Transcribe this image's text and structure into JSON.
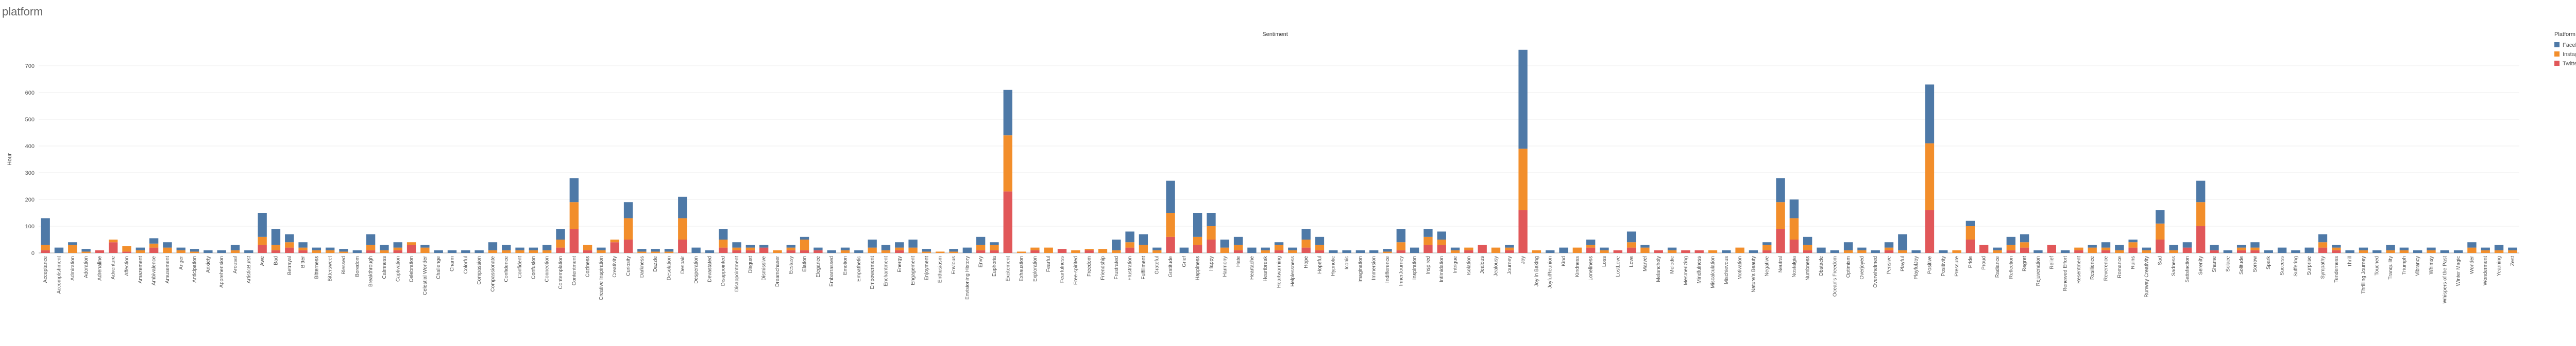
{
  "chart_data": {
    "type": "stacked_bar",
    "page_title": "platform",
    "title": "Sentiment",
    "y_label": "Hour",
    "legend_title": "Platform",
    "legend": "top-right",
    "grid": true,
    "ylim": [
      0,
      780
    ],
    "yticks": [
      0,
      100,
      200,
      300,
      400,
      500,
      600,
      700
    ],
    "categories": [
      "Acceptance",
      "Accomplishment",
      "Admiration",
      "Adoration",
      "Adrenaline",
      "Adventure",
      "Affection",
      "Amazement",
      "Ambivalence",
      "Amusement",
      "Anger",
      "Anticipation",
      "Anxiety",
      "Apprehension",
      "Arousal",
      "ArtisticBurst",
      "Awe",
      "Bad",
      "Betrayal",
      "Bitter",
      "Bitterness",
      "Bittersweet",
      "Blessed",
      "Boredom",
      "Breakthrough",
      "Calmness",
      "Captivation",
      "Celebration",
      "Celestial Wonder",
      "Challenge",
      "Charm",
      "Colorful",
      "Compassion",
      "Compassionate",
      "Confidence",
      "Confident",
      "Confusion",
      "Connection",
      "Contemplation",
      "Contentment",
      "Coziness",
      "Creative Inspiration",
      "Creativity",
      "Curiosity",
      "Darkness",
      "Dazzle",
      "Desolation",
      "Despair",
      "Desperation",
      "Devastated",
      "Disappointed",
      "Disappointment",
      "Disgust",
      "Dismissive",
      "Dreamchaser",
      "Ecstasy",
      "Elation",
      "Elegance",
      "Embarrassed",
      "Emotion",
      "Empathetic",
      "Empowerment",
      "Enchantment",
      "Energy",
      "Engagement",
      "Enjoyment",
      "Enthusiasm",
      "Envious",
      "Envisioning History",
      "Envy",
      "Euphoria",
      "Excitement",
      "Exhaustion",
      "Exploration",
      "Fearful",
      "Fearfulness",
      "Free-spirited",
      "Freedom",
      "Friendship",
      "Frustrated",
      "Frustration",
      "Fulfillment",
      "Grateful",
      "Gratitude",
      "Grief",
      "Happiness",
      "Happy",
      "Harmony",
      "Hate",
      "Heartache",
      "Heartbreak",
      "Heartwarming",
      "Helplessness",
      "Hope",
      "Hopeful",
      "Hypnotic",
      "Iconic",
      "Imagination",
      "Immersion",
      "Indifference",
      "InnerJourney",
      "Inspiration",
      "Inspired",
      "Intimidation",
      "Intrigue",
      "Isolation",
      "Jealous",
      "Jealousy",
      "Journey",
      "Joy",
      "Joy in Baking",
      "JoyfulReunion",
      "Kind",
      "Kindness",
      "Loneliness",
      "Loss",
      "LostLove",
      "Love",
      "Marvel",
      "Melancholy",
      "Melodic",
      "Mesmerizing",
      "Mindfulness",
      "Miscalculation",
      "Mischievous",
      "Motivation",
      "Nature's Beauty",
      "Negative",
      "Neutral",
      "Nostalgia",
      "Numbness",
      "Obstacle",
      "Ocean's Freedom",
      "Optimism",
      "Overjoyed",
      "Overwhelmed",
      "Pensive",
      "Playful",
      "PlayfulJoy",
      "Positive",
      "Positivity",
      "Pressure",
      "Pride",
      "Proud",
      "Radiance",
      "Reflection",
      "Regret",
      "Rejuvenation",
      "Relief",
      "Renewed Effort",
      "Resentment",
      "Resilience",
      "Reverence",
      "Romance",
      "Ruins",
      "Runway Creativity",
      "Sad",
      "Sadness",
      "Satisfaction",
      "Serenity",
      "Shame",
      "Solace",
      "Solitude",
      "Sorrow",
      "Spark",
      "Success",
      "Suffering",
      "Surprise",
      "Sympathy",
      "Tenderness",
      "Thrill",
      "Thrilling Journey",
      "Touched",
      "Tranquility",
      "Triumph",
      "Vibrancy",
      "Whimsy",
      "Whispers of the Past",
      "Winter Magic",
      "Wonder",
      "Wonderment",
      "Yearning",
      "Zest"
    ],
    "series": [
      {
        "name": "Facebook",
        "color": "#4e79a7",
        "values": [
          100,
          20,
          10,
          10,
          0,
          0,
          0,
          10,
          20,
          20,
          10,
          10,
          10,
          10,
          20,
          10,
          90,
          60,
          30,
          20,
          10,
          10,
          10,
          10,
          40,
          20,
          20,
          0,
          10,
          10,
          10,
          10,
          10,
          30,
          20,
          10,
          10,
          20,
          40,
          90,
          0,
          10,
          0,
          60,
          10,
          10,
          10,
          80,
          20,
          10,
          40,
          20,
          10,
          10,
          0,
          10,
          10,
          10,
          10,
          10,
          10,
          30,
          20,
          20,
          30,
          10,
          0,
          10,
          20,
          30,
          10,
          170,
          0,
          0,
          0,
          0,
          0,
          0,
          0,
          40,
          40,
          40,
          10,
          120,
          20,
          90,
          50,
          30,
          30,
          20,
          10,
          10,
          10,
          40,
          30,
          10,
          10,
          10,
          10,
          10,
          50,
          20,
          30,
          30,
          10,
          0,
          0,
          0,
          10,
          370,
          0,
          10,
          20,
          0,
          20,
          10,
          0,
          40,
          10,
          0,
          10,
          0,
          0,
          0,
          10,
          0,
          10,
          10,
          90,
          70,
          30,
          20,
          10,
          30,
          10,
          10,
          20,
          60,
          10,
          220,
          10,
          0,
          20,
          0,
          10,
          30,
          30,
          10,
          0,
          10,
          0,
          10,
          20,
          20,
          10,
          10,
          50,
          20,
          20,
          80,
          20,
          10,
          10,
          20,
          10,
          20,
          10,
          20,
          30,
          10,
          10,
          10,
          10,
          20,
          10,
          10,
          10,
          10,
          10,
          20,
          10,
          20,
          10
        ]
      },
      {
        "name": "Instagram",
        "color": "#f28e2b",
        "values": [
          20,
          0,
          30,
          5,
          0,
          10,
          20,
          10,
          15,
          20,
          10,
          5,
          0,
          0,
          10,
          0,
          30,
          20,
          20,
          10,
          10,
          10,
          5,
          0,
          20,
          10,
          10,
          10,
          20,
          0,
          0,
          0,
          0,
          10,
          10,
          10,
          10,
          10,
          30,
          100,
          20,
          10,
          10,
          80,
          5,
          5,
          5,
          80,
          0,
          0,
          30,
          10,
          10,
          0,
          10,
          10,
          40,
          0,
          0,
          10,
          0,
          20,
          10,
          10,
          20,
          5,
          5,
          5,
          0,
          20,
          20,
          210,
          5,
          10,
          20,
          0,
          10,
          5,
          15,
          10,
          20,
          30,
          10,
          90,
          0,
          30,
          50,
          20,
          20,
          0,
          10,
          20,
          10,
          30,
          20,
          0,
          0,
          0,
          0,
          5,
          30,
          0,
          30,
          20,
          10,
          10,
          0,
          20,
          10,
          230,
          10,
          0,
          0,
          20,
          10,
          10,
          0,
          20,
          20,
          0,
          10,
          0,
          0,
          10,
          0,
          20,
          0,
          20,
          100,
          80,
          20,
          0,
          0,
          10,
          10,
          0,
          10,
          10,
          0,
          250,
          0,
          10,
          50,
          0,
          10,
          20,
          20,
          0,
          0,
          0,
          10,
          20,
          10,
          10,
          20,
          10,
          60,
          10,
          0,
          90,
          0,
          0,
          10,
          10,
          0,
          0,
          0,
          0,
          20,
          10,
          0,
          10,
          0,
          10,
          10,
          0,
          10,
          0,
          0,
          20,
          10,
          10,
          10
        ]
      },
      {
        "name": "Twitter",
        "color": "#e15759",
        "values": [
          10,
          0,
          0,
          0,
          10,
          40,
          5,
          0,
          20,
          0,
          0,
          0,
          0,
          0,
          0,
          0,
          30,
          10,
          20,
          10,
          0,
          0,
          0,
          0,
          10,
          0,
          10,
          30,
          0,
          0,
          0,
          0,
          0,
          0,
          0,
          0,
          0,
          0,
          20,
          90,
          10,
          0,
          40,
          50,
          0,
          0,
          0,
          50,
          0,
          0,
          20,
          10,
          10,
          20,
          0,
          10,
          10,
          10,
          0,
          0,
          0,
          0,
          0,
          10,
          0,
          0,
          0,
          0,
          0,
          10,
          10,
          230,
          0,
          10,
          0,
          15,
          0,
          10,
          0,
          0,
          20,
          0,
          0,
          60,
          0,
          30,
          50,
          0,
          10,
          0,
          0,
          10,
          0,
          20,
          10,
          0,
          0,
          0,
          0,
          0,
          10,
          0,
          30,
          30,
          0,
          10,
          30,
          0,
          10,
          160,
          0,
          0,
          0,
          0,
          20,
          0,
          10,
          20,
          0,
          10,
          0,
          10,
          10,
          0,
          0,
          0,
          0,
          10,
          90,
          50,
          10,
          0,
          0,
          0,
          0,
          0,
          10,
          0,
          0,
          160,
          0,
          0,
          50,
          30,
          0,
          10,
          20,
          0,
          30,
          0,
          10,
          0,
          10,
          0,
          20,
          0,
          50,
          0,
          20,
          100,
          10,
          0,
          10,
          10,
          0,
          0,
          0,
          0,
          20,
          10,
          0,
          0,
          0,
          0,
          0,
          0,
          0,
          0,
          0,
          0,
          0,
          0,
          0
        ]
      }
    ]
  }
}
